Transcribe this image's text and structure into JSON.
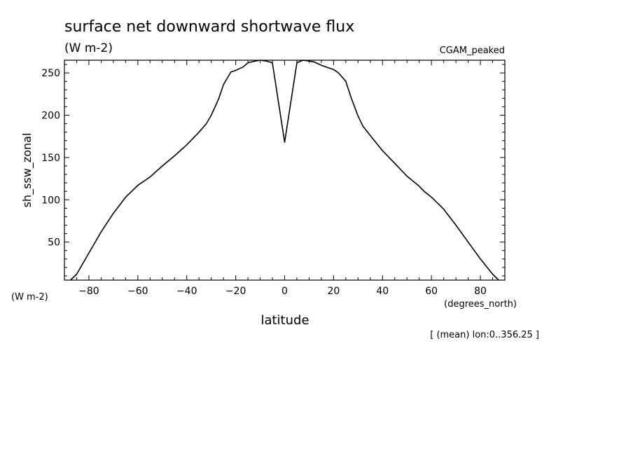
{
  "chart_data": {
    "type": "line",
    "title": "surface net downward shortwave flux",
    "subtitle": "(W m-2)",
    "dataset_label": "CGAM_peaked",
    "ylabel": "sh_ssw_zonal",
    "ylabel_units": "(W m-2)",
    "xlabel": "latitude",
    "xlabel_units": "(degrees_north)",
    "footnote": "[ (mean) lon:0..356.25 ]",
    "xlim": [
      -90,
      90
    ],
    "ylim": [
      5,
      265
    ],
    "x_ticks": [
      -80,
      -60,
      -40,
      -20,
      0,
      20,
      40,
      60,
      80
    ],
    "y_ticks": [
      50,
      100,
      150,
      200,
      250
    ],
    "series": [
      {
        "x": [
          -87.5,
          -85,
          -80,
          -75,
          -70,
          -65,
          -60,
          -57,
          -55,
          -50,
          -45,
          -40,
          -35,
          -32,
          -30,
          -27,
          -25,
          -22,
          -20,
          -17,
          -15,
          -12,
          -10,
          -7.5,
          -5,
          0,
          5,
          7.5,
          10,
          12,
          15,
          17,
          20,
          22,
          25,
          27,
          30,
          32,
          35,
          40,
          45,
          50,
          55,
          57,
          60,
          65,
          70,
          75,
          80,
          85,
          87.5
        ],
        "y": [
          5,
          12,
          37,
          62,
          84,
          103,
          117,
          123,
          127,
          140,
          152,
          165,
          180,
          190,
          200,
          219,
          236,
          251,
          253,
          257,
          262,
          264,
          265,
          264,
          262,
          168,
          262,
          265,
          264,
          263,
          259,
          257,
          254,
          250,
          240,
          222,
          199,
          187,
          176,
          158,
          143,
          128,
          116,
          110,
          103,
          89,
          70,
          50,
          30,
          12,
          5
        ]
      }
    ]
  }
}
